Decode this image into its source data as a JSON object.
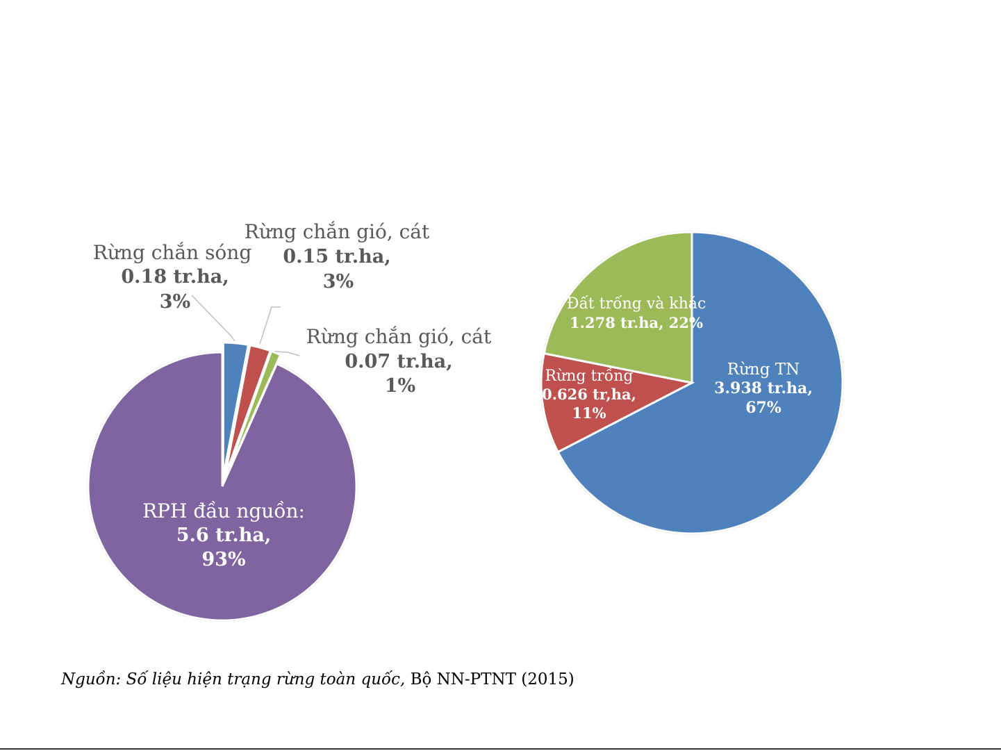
{
  "chart_data": [
    {
      "type": "pie",
      "exploded": true,
      "slices": [
        {
          "label": "Rừng chắn sóng",
          "value_text": "0.18 tr.ha,",
          "pct_text": "3%",
          "value": 0.18,
          "percent": 3,
          "color": "#4f81bd"
        },
        {
          "label": "Rừng chắn gió, cát",
          "value_text": "0.15 tr.ha,",
          "pct_text": "3%",
          "value": 0.15,
          "percent": 3,
          "color": "#c0504d"
        },
        {
          "label": "Rừng chắn gió, cát",
          "value_text": "0.07 tr.ha,",
          "pct_text": "1%",
          "value": 0.07,
          "percent": 1,
          "color": "#9bbb59"
        },
        {
          "label": "RPH đầu nguồn:",
          "value_text": "5.6 tr.ha,",
          "pct_text": "93%",
          "value": 5.6,
          "percent": 93,
          "color": "#8064a2"
        }
      ]
    },
    {
      "type": "pie",
      "slices": [
        {
          "label": "Rừng TN",
          "value_text": "3.938 tr.ha,",
          "pct_text": "67%",
          "value": 3.938,
          "percent": 67,
          "color": "#4f81bd"
        },
        {
          "label": "Rừng trồng",
          "value_text": "0.626 tr,ha,",
          "pct_text": "11%",
          "value": 0.626,
          "percent": 11,
          "color": "#c0504d"
        },
        {
          "label": "Đất trống và khác",
          "value_text": "1.278 tr.ha, 22%",
          "pct_text": "",
          "value": 1.278,
          "percent": 22,
          "color": "#9bbb59"
        }
      ]
    }
  ],
  "source": {
    "italic": "Nguồn: Số liệu hiện trạng rừng toàn quốc,",
    "normal": " Bộ NN-PTNT (2015)"
  }
}
